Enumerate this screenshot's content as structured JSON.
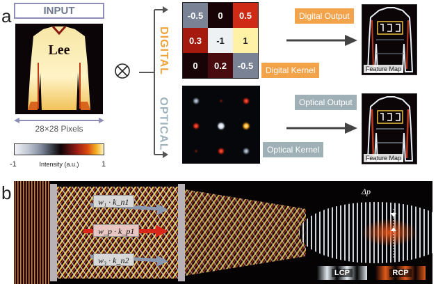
{
  "panel_a": {
    "letter": "a",
    "input_label": "INPUT",
    "pixels_label": "28×28 Pixels",
    "colorbar": {
      "min_label": "-1",
      "max_label": "1",
      "title": "Intensity (a.u.)"
    },
    "digital_word": "DIGITAL",
    "optical_word": "OPTICAL",
    "digital_kernel": {
      "values": [
        [
          "-0.5",
          "0",
          "0.5"
        ],
        [
          "0.3",
          "-1",
          "1"
        ],
        [
          "0",
          "0.2",
          "-0.5"
        ]
      ],
      "colors": [
        [
          "#7a8295",
          "#180407",
          "#cf2a16"
        ],
        [
          "#a5190f",
          "#eef1f4",
          "#fff1a6"
        ],
        [
          "#180407",
          "#4a0b0e",
          "#7a8295"
        ]
      ],
      "text_colors": [
        [
          "#ffffff",
          "#ffffff",
          "#ffffff"
        ],
        [
          "#ffffff",
          "#222222",
          "#222222"
        ],
        [
          "#ffffff",
          "#ffffff",
          "#ffffff"
        ]
      ]
    },
    "digital_kernel_label": "Digital Kernel",
    "optical_kernel_label": "Optical Kernel",
    "digital_output_label": "Digital Output",
    "optical_output_label": "Optical Output",
    "feature_map_label_top": "Feature Map",
    "feature_map_label_bottom": "Feature Map",
    "shirt_text": "Lee"
  },
  "panel_b": {
    "letter": "b",
    "w1_label": "w₁ · k_n1",
    "wp_label": "w_p · k_p1",
    "w3_label": "w₃ · k_n2",
    "delta_p": "Δp",
    "lcp_label": "LCP",
    "rcp_label": "RCP"
  },
  "colors": {
    "orange": "#f3a34a",
    "gray_blue": "#9fb0b7",
    "input_border": "#8d8db6"
  }
}
